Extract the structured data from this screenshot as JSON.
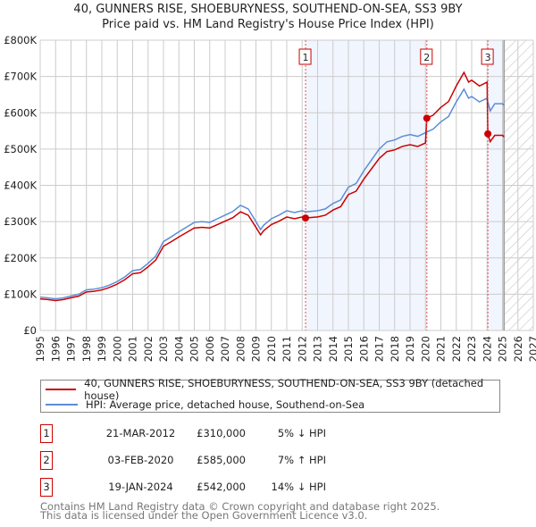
{
  "chart_data": {
    "type": "line",
    "title": "40, GUNNERS RISE, SHOEBURYNESS, SOUTHEND-ON-SEA, SS3 9BY",
    "subtitle": "Price paid vs. HM Land Registry's House Price Index (HPI)",
    "xlim": [
      1995,
      2027
    ],
    "ylim": [
      0,
      800000
    ],
    "x_ticks": [
      "1995",
      "1996",
      "1997",
      "1998",
      "1999",
      "2000",
      "2001",
      "2002",
      "2003",
      "2004",
      "2005",
      "2006",
      "2007",
      "2008",
      "2009",
      "2010",
      "2011",
      "2012",
      "2013",
      "2014",
      "2015",
      "2016",
      "2017",
      "2018",
      "2019",
      "2020",
      "2021",
      "2022",
      "2023",
      "2024",
      "2025",
      "2026",
      "2027"
    ],
    "y_ticks": [
      {
        "v": 0,
        "label": "£0"
      },
      {
        "v": 100000,
        "label": "£100K"
      },
      {
        "v": 200000,
        "label": "£200K"
      },
      {
        "v": 300000,
        "label": "£300K"
      },
      {
        "v": 400000,
        "label": "£400K"
      },
      {
        "v": 500000,
        "label": "£500K"
      },
      {
        "v": 600000,
        "label": "£600K"
      },
      {
        "v": 700000,
        "label": "£700K"
      },
      {
        "v": 800000,
        "label": "£800K"
      }
    ],
    "grid": true,
    "data_end": 2025.1,
    "series": [
      {
        "name": "HPI: Average price, detached house, Southend-on-Sea",
        "color": "#5b8dd6",
        "x": [
          1995,
          1995.5,
          1996,
          1996.5,
          1997,
          1997.5,
          1998,
          1998.5,
          1999,
          1999.5,
          2000,
          2000.5,
          2001,
          2001.5,
          2002,
          2002.5,
          2003,
          2003.5,
          2004,
          2004.5,
          2005,
          2005.5,
          2006,
          2006.5,
          2007,
          2007.5,
          2008,
          2008.5,
          2009,
          2009.3,
          2009.5,
          2010,
          2010.5,
          2011,
          2011.5,
          2012,
          2012.22,
          2012.5,
          2013,
          2013.5,
          2014,
          2014.5,
          2015,
          2015.5,
          2016,
          2016.5,
          2017,
          2017.5,
          2018,
          2018.5,
          2019,
          2019.5,
          2020,
          2020.09,
          2020.5,
          2021,
          2021.5,
          2022,
          2022.5,
          2022.8,
          2023,
          2023.5,
          2024,
          2024.05,
          2024.2,
          2024.5,
          2025,
          2025.1
        ],
        "y": [
          92000,
          90000,
          87000,
          90000,
          95000,
          100000,
          112000,
          114000,
          118000,
          125000,
          135000,
          148000,
          165000,
          168000,
          185000,
          205000,
          245000,
          258000,
          272000,
          285000,
          298000,
          300000,
          298000,
          308000,
          318000,
          328000,
          345000,
          335000,
          300000,
          278000,
          290000,
          308000,
          318000,
          330000,
          325000,
          330000,
          327000,
          328000,
          330000,
          335000,
          350000,
          360000,
          395000,
          405000,
          440000,
          470000,
          500000,
          520000,
          525000,
          535000,
          540000,
          535000,
          545000,
          547000,
          555000,
          575000,
          590000,
          630000,
          665000,
          640000,
          645000,
          630000,
          640000,
          630000,
          605000,
          625000,
          625000,
          620000
        ]
      },
      {
        "name": "40, GUNNERS RISE, SHOEBURYNESS, SOUTHEND-ON-SEA, SS3 9BY (detached house)",
        "color": "#cc0000",
        "derived": "HPI-indexed from each sale"
      }
    ],
    "sales": [
      {
        "n": "1",
        "x": 2012.22,
        "date": "21-MAR-2012",
        "price": 310000,
        "price_label": "£310,000",
        "hpi": "5% ↓ HPI"
      },
      {
        "n": "2",
        "x": 2020.09,
        "date": "03-FEB-2020",
        "price": 585000,
        "price_label": "£585,000",
        "hpi": "7% ↑ HPI"
      },
      {
        "n": "3",
        "x": 2024.05,
        "date": "19-JAN-2024",
        "price": 542000,
        "price_label": "£542,000",
        "hpi": "14% ↓ HPI"
      }
    ]
  },
  "legend": {
    "red": "40, GUNNERS RISE, SHOEBURYNESS, SOUTHEND-ON-SEA, SS3 9BY (detached house)",
    "blue": "HPI: Average price, detached house, Southend-on-Sea"
  },
  "footer": {
    "line1": "Contains HM Land Registry data © Crown copyright and database right 2025.",
    "line2": "This data is licensed under the Open Government Licence v3.0."
  }
}
